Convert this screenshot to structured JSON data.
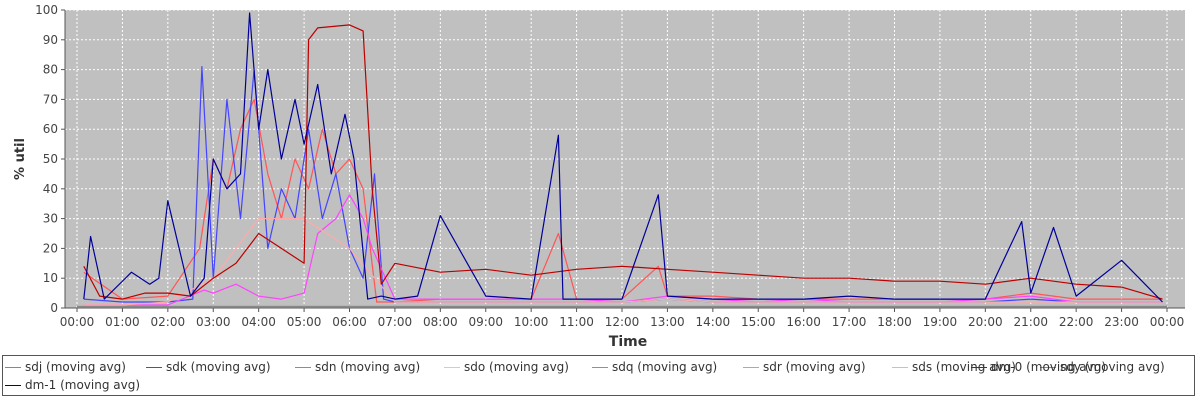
{
  "chart_data": {
    "type": "line",
    "title": "",
    "xlabel": "Time",
    "ylabel": "% util",
    "ylim": [
      0,
      100
    ],
    "yticks": [
      0,
      10,
      20,
      30,
      40,
      50,
      60,
      70,
      80,
      90,
      100
    ],
    "xlim": [
      0,
      24
    ],
    "xticks": [
      "00:00",
      "01:00",
      "02:00",
      "03:00",
      "04:00",
      "05:00",
      "06:00",
      "07:00",
      "08:00",
      "09:00",
      "10:00",
      "11:00",
      "12:00",
      "13:00",
      "14:00",
      "15:00",
      "16:00",
      "17:00",
      "18:00",
      "19:00",
      "20:00",
      "21:00",
      "22:00",
      "23:00",
      "00:00"
    ],
    "grid": true,
    "legend_position": "bottom",
    "series": [
      {
        "name": "sdj (moving avg)",
        "color": "#ff5555",
        "x": [
          0.15,
          1,
          2,
          2.7,
          3,
          3.3,
          3.6,
          3.9,
          4.2,
          4.5,
          4.8,
          5.1,
          5.4,
          5.7,
          6,
          6.3,
          6.6,
          7,
          8,
          9,
          10,
          10.6,
          11,
          12,
          12.8,
          13,
          14,
          15,
          16,
          17,
          18,
          19,
          20,
          21,
          22,
          23,
          23.9
        ],
        "y": [
          12,
          3,
          4,
          20,
          50,
          40,
          60,
          70,
          45,
          30,
          50,
          40,
          60,
          45,
          50,
          40,
          2,
          2,
          3,
          3,
          3,
          25,
          3,
          3,
          14,
          4,
          4,
          3,
          3,
          3,
          3,
          3,
          3,
          5,
          3,
          3,
          3
        ]
      },
      {
        "name": "sdk (moving avg)",
        "color": "#4444ff",
        "x": [
          0.15,
          1,
          2,
          2.55,
          2.75,
          3,
          3.3,
          3.6,
          3.9,
          4.2,
          4.5,
          4.8,
          5.1,
          5.4,
          5.7,
          6,
          6.3,
          6.55,
          6.75,
          7,
          8,
          9,
          10,
          11,
          12,
          13,
          14,
          15,
          16,
          17,
          18,
          19,
          20,
          21,
          22,
          23,
          23.9
        ],
        "y": [
          3,
          2,
          2,
          3,
          81,
          10,
          70,
          30,
          80,
          20,
          40,
          30,
          60,
          30,
          45,
          20,
          10,
          45,
          3,
          2,
          2,
          2,
          2,
          2,
          2,
          3,
          2,
          2,
          2,
          2,
          2,
          2,
          2,
          3,
          2,
          2,
          2
        ]
      },
      {
        "name": "sdn (moving avg)",
        "color": "#33cc33",
        "x": [
          0,
          24
        ],
        "y": [
          0.5,
          0.5
        ]
      },
      {
        "name": "sdo (moving avg)",
        "color": "#ffdd00",
        "x": [
          0,
          24
        ],
        "y": [
          0.5,
          0.5
        ]
      },
      {
        "name": "sdq (moving avg)",
        "color": "#ff44ff",
        "x": [
          0.15,
          1,
          2,
          2.8,
          3,
          3.5,
          4,
          4.5,
          5,
          5.3,
          5.7,
          6,
          6.3,
          6.5,
          7,
          8,
          9,
          10,
          11,
          12,
          13,
          14,
          15,
          16,
          17,
          18,
          19,
          20,
          21,
          22,
          23,
          23.9
        ],
        "y": [
          1,
          1,
          1,
          6,
          5,
          8,
          4,
          3,
          5,
          25,
          30,
          38,
          30,
          20,
          3,
          3,
          3,
          3,
          3,
          2,
          4,
          3,
          2,
          3,
          2,
          2,
          2,
          3,
          4,
          2,
          2,
          2
        ]
      },
      {
        "name": "sdr (moving avg)",
        "color": "#33dddd",
        "x": [
          0,
          24
        ],
        "y": [
          0.5,
          0.5
        ]
      },
      {
        "name": "sds (moving avg)",
        "color": "#ffaaaa",
        "x": [
          0.15,
          1,
          2,
          3,
          4,
          5,
          6,
          7,
          8,
          9,
          10,
          11,
          12,
          13,
          14,
          15,
          16,
          17,
          18,
          19,
          20,
          21,
          22,
          23,
          23.9
        ],
        "y": [
          1,
          1,
          2,
          10,
          30,
          30,
          20,
          2,
          2,
          2,
          2,
          2,
          2,
          3,
          2,
          2,
          2,
          2,
          2,
          2,
          2,
          2,
          2,
          2,
          2
        ]
      },
      {
        "name": "sdy (moving avg)",
        "color": "#888888",
        "x": [
          0,
          24
        ],
        "y": [
          0.5,
          0.5
        ]
      },
      {
        "name": "dm-0 (moving avg)",
        "color": "#bb0000",
        "x": [
          0.15,
          0.5,
          1,
          1.5,
          2,
          2.5,
          3,
          3.5,
          4,
          4.5,
          5,
          5.1,
          5.3,
          6,
          6.3,
          6.5,
          6.7,
          7,
          8,
          9,
          10,
          11,
          12,
          13,
          14,
          15,
          16,
          17,
          18,
          19,
          20,
          21,
          22,
          23,
          23.9
        ],
        "y": [
          14,
          4,
          3,
          5,
          5,
          4,
          10,
          15,
          25,
          20,
          15,
          90,
          94,
          95,
          93,
          40,
          8,
          15,
          12,
          13,
          11,
          13,
          14,
          13,
          12,
          11,
          10,
          10,
          9,
          9,
          8,
          10,
          8,
          7,
          3
        ]
      },
      {
        "name": "dm-1 (moving avg)",
        "color": "#000099",
        "x": [
          0.15,
          0.3,
          0.6,
          1.2,
          1.6,
          1.8,
          2,
          2.5,
          2.8,
          3,
          3.3,
          3.6,
          3.8,
          4,
          4.2,
          4.5,
          4.8,
          5,
          5.3,
          5.6,
          5.9,
          6.1,
          6.4,
          6.7,
          7,
          7.5,
          8,
          9,
          10,
          10.6,
          10.7,
          11,
          12,
          12.8,
          13,
          14,
          15,
          16,
          17,
          18,
          19,
          20,
          20.8,
          21,
          21.5,
          22,
          23,
          23.9
        ],
        "y": [
          3,
          24,
          3,
          12,
          8,
          10,
          36,
          4,
          10,
          50,
          40,
          45,
          99,
          60,
          80,
          50,
          70,
          55,
          75,
          45,
          65,
          50,
          3,
          4,
          3,
          4,
          31,
          4,
          3,
          58,
          3,
          3,
          3,
          38,
          4,
          3,
          3,
          3,
          4,
          3,
          3,
          3,
          29,
          5,
          27,
          4,
          16,
          2
        ]
      }
    ]
  }
}
